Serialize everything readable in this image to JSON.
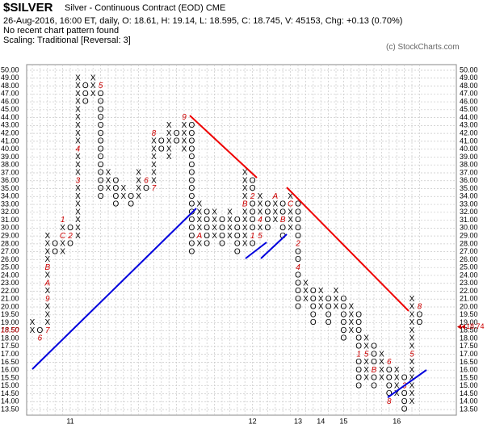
{
  "chart_data": {
    "type": "point-and-figure",
    "title": "$SILVER",
    "subtitle": "Silver - Continuous Contract (EOD)  CME",
    "info": "26-Aug-2016, 16:00 ET, daily, O: 18.61, H: 19.14, L: 18.595, C: 18.745, V: 45153, Chg: +0.13 (0.70%)",
    "pattern": "No recent chart pattern found",
    "scaling": "Scaling: Traditional [Reversal: 3]",
    "credit": "(c) StockCharts.com",
    "grid": true,
    "x_color": "#000000",
    "o_color": "#000000",
    "mark_color": "#cc0000",
    "left_marker": {
      "value": 18.5,
      "label": "18.50"
    },
    "last_price": {
      "value": 18.74,
      "label": "18.74"
    },
    "ylim": [
      13.5,
      50
    ],
    "yticks": [
      {
        "value": 13.5,
        "label": "13.50"
      },
      {
        "value": 14,
        "label": "14.00"
      },
      {
        "value": 14.5,
        "label": "14.50"
      },
      {
        "value": 15,
        "label": "15.00"
      },
      {
        "value": 15.5,
        "label": "15.50"
      },
      {
        "value": 16,
        "label": "16.00"
      },
      {
        "value": 16.5,
        "label": "16.50"
      },
      {
        "value": 17,
        "label": "17.00"
      },
      {
        "value": 17.5,
        "label": "17.50"
      },
      {
        "value": 18,
        "label": "18.00"
      },
      {
        "value": 18.5,
        "label": "18.50"
      },
      {
        "value": 19,
        "label": "19.00"
      },
      {
        "value": 19.5,
        "label": "19.50"
      },
      {
        "value": 20,
        "label": "20.00"
      },
      {
        "value": 21,
        "label": "21.00"
      },
      {
        "value": 22,
        "label": "22.00"
      },
      {
        "value": 23,
        "label": "23.00"
      },
      {
        "value": 24,
        "label": "24.00"
      },
      {
        "value": 25,
        "label": "25.00"
      },
      {
        "value": 26,
        "label": "26.00"
      },
      {
        "value": 27,
        "label": "27.00"
      },
      {
        "value": 28,
        "label": "28.00"
      },
      {
        "value": 29,
        "label": "29.00"
      },
      {
        "value": 30,
        "label": "30.00"
      },
      {
        "value": 31,
        "label": "31.00"
      },
      {
        "value": 32,
        "label": "32.00"
      },
      {
        "value": 33,
        "label": "33.00"
      },
      {
        "value": 34,
        "label": "34.00"
      },
      {
        "value": 35,
        "label": "35.00"
      },
      {
        "value": 36,
        "label": "36.00"
      },
      {
        "value": 37,
        "label": "37.00"
      },
      {
        "value": 38,
        "label": "38.00"
      },
      {
        "value": 39,
        "label": "39.00"
      },
      {
        "value": 40,
        "label": "40.00"
      },
      {
        "value": 41,
        "label": "41.00"
      },
      {
        "value": 42,
        "label": "42.00"
      },
      {
        "value": 43,
        "label": "43.00"
      },
      {
        "value": 44,
        "label": "44.00"
      },
      {
        "value": 45,
        "label": "45.00"
      },
      {
        "value": 46,
        "label": "46.00"
      },
      {
        "value": 47,
        "label": "47.00"
      },
      {
        "value": 48,
        "label": "48.00"
      },
      {
        "value": 49,
        "label": "49.00"
      },
      {
        "value": 50,
        "label": "50.00"
      }
    ],
    "categories": [
      null,
      null,
      null,
      null,
      null,
      "11",
      null,
      null,
      null,
      null,
      null,
      null,
      null,
      null,
      null,
      null,
      null,
      null,
      null,
      null,
      null,
      null,
      null,
      null,
      null,
      null,
      null,
      null,
      null,
      "12",
      null,
      null,
      null,
      null,
      null,
      "13",
      null,
      null,
      "14",
      null,
      null,
      "15",
      null,
      null,
      null,
      null,
      null,
      null,
      "16",
      null,
      null,
      null
    ],
    "columns": [
      {
        "kind": "X",
        "low": 18.5,
        "high": 19
      },
      {
        "kind": "O",
        "low": 18,
        "high": 18.5,
        "marks": [
          {
            "value": 18,
            "label": "6"
          }
        ]
      },
      {
        "kind": "X",
        "low": 18.5,
        "high": 29,
        "marks": [
          {
            "value": 18.5,
            "label": "7"
          },
          {
            "value": 21,
            "label": "9"
          },
          {
            "value": 23,
            "label": "A"
          },
          {
            "value": 25,
            "label": "B"
          }
        ]
      },
      {
        "kind": "O",
        "low": 27,
        "high": 28
      },
      {
        "kind": "X",
        "low": 27,
        "high": 31,
        "marks": [
          {
            "value": 29,
            "label": "C"
          },
          {
            "value": 31,
            "label": "1"
          }
        ]
      },
      {
        "kind": "O",
        "low": 28,
        "high": 30,
        "marks": [
          {
            "value": 29,
            "label": "2"
          }
        ]
      },
      {
        "kind": "X",
        "low": 29,
        "high": 49,
        "marks": [
          {
            "value": 36,
            "label": "3"
          },
          {
            "value": 40,
            "label": "4"
          }
        ]
      },
      {
        "kind": "O",
        "low": 46,
        "high": 48
      },
      {
        "kind": "X",
        "low": 47,
        "high": 49
      },
      {
        "kind": "O",
        "low": 34,
        "high": 48,
        "marks": [
          {
            "value": 48,
            "label": "5"
          }
        ]
      },
      {
        "kind": "X",
        "low": 35,
        "high": 37
      },
      {
        "kind": "O",
        "low": 33,
        "high": 36
      },
      {
        "kind": "X",
        "low": 34,
        "high": 35
      },
      {
        "kind": "O",
        "low": 33,
        "high": 34
      },
      {
        "kind": "X",
        "low": 34,
        "high": 37
      },
      {
        "kind": "O",
        "low": 35,
        "high": 36,
        "marks": [
          {
            "value": 36,
            "label": "6"
          }
        ]
      },
      {
        "kind": "X",
        "low": 35,
        "high": 42,
        "marks": [
          {
            "value": 35,
            "label": "7"
          },
          {
            "value": 42,
            "label": "8"
          }
        ]
      },
      {
        "kind": "O",
        "low": 40,
        "high": 41
      },
      {
        "kind": "X",
        "low": 39,
        "high": 43
      },
      {
        "kind": "O",
        "low": 41,
        "high": 42
      },
      {
        "kind": "X",
        "low": 40,
        "high": 44,
        "marks": [
          {
            "value": 44,
            "label": "9"
          }
        ]
      },
      {
        "kind": "O",
        "low": 27,
        "high": 43
      },
      {
        "kind": "X",
        "low": 28,
        "high": 33,
        "marks": [
          {
            "value": 29,
            "label": "A"
          }
        ]
      },
      {
        "kind": "O",
        "low": 28,
        "high": 32
      },
      {
        "kind": "X",
        "low": 29,
        "high": 32
      },
      {
        "kind": "O",
        "low": 28,
        "high": 31
      },
      {
        "kind": "X",
        "low": 29,
        "high": 32
      },
      {
        "kind": "O",
        "low": 27,
        "high": 31
      },
      {
        "kind": "X",
        "low": 28,
        "high": 37,
        "marks": [
          {
            "value": 33,
            "label": "B"
          }
        ]
      },
      {
        "kind": "O",
        "low": 28,
        "high": 36,
        "marks": [
          {
            "value": 29,
            "label": "1"
          },
          {
            "value": 34,
            "label": "2"
          }
        ]
      },
      {
        "kind": "X",
        "low": 29,
        "high": 34,
        "marks": [
          {
            "value": 31,
            "label": "4"
          },
          {
            "value": 29,
            "label": "5"
          }
        ]
      },
      {
        "kind": "O",
        "low": 30,
        "high": 33
      },
      {
        "kind": "X",
        "low": 31,
        "high": 34,
        "marks": [
          {
            "value": 34,
            "label": "A"
          }
        ]
      },
      {
        "kind": "O",
        "low": 29,
        "high": 33,
        "marks": [
          {
            "value": 31,
            "label": "B"
          }
        ]
      },
      {
        "kind": "X",
        "low": 30,
        "high": 34,
        "marks": [
          {
            "value": 33,
            "label": "C"
          }
        ]
      },
      {
        "kind": "O",
        "low": 20,
        "high": 33,
        "marks": [
          {
            "value": 28,
            "label": "2"
          },
          {
            "value": 25,
            "label": "4"
          }
        ]
      },
      {
        "kind": "X",
        "low": 21,
        "high": 23
      },
      {
        "kind": "O",
        "low": 19,
        "high": 22
      },
      {
        "kind": "X",
        "low": 20,
        "high": 22
      },
      {
        "kind": "O",
        "low": 19,
        "high": 21
      },
      {
        "kind": "X",
        "low": 20,
        "high": 22
      },
      {
        "kind": "O",
        "low": 18,
        "high": 21
      },
      {
        "kind": "X",
        "low": 18.5,
        "high": 20
      },
      {
        "kind": "O",
        "low": 15,
        "high": 19.5,
        "marks": [
          {
            "value": 17,
            "label": "1"
          }
        ]
      },
      {
        "kind": "X",
        "low": 15.5,
        "high": 18,
        "marks": [
          {
            "value": 17,
            "label": "5"
          }
        ]
      },
      {
        "kind": "O",
        "low": 15,
        "high": 17.5,
        "marks": [
          {
            "value": 16,
            "label": "B"
          }
        ]
      },
      {
        "kind": "X",
        "low": 15.5,
        "high": 17
      },
      {
        "kind": "O",
        "low": 14,
        "high": 16.5,
        "marks": [
          {
            "value": 16.5,
            "label": "6"
          },
          {
            "value": 14,
            "label": "8"
          }
        ]
      },
      {
        "kind": "X",
        "low": 14.5,
        "high": 16
      },
      {
        "kind": "O",
        "low": 13.5,
        "high": 15.5,
        "marks": [
          {
            "value": 15,
            "label": "3"
          }
        ]
      },
      {
        "kind": "X",
        "low": 14,
        "high": 21,
        "marks": [
          {
            "value": 17,
            "label": "5"
          }
        ]
      },
      {
        "kind": "O",
        "low": 19,
        "high": 20,
        "marks": [
          {
            "value": 20,
            "label": "8"
          }
        ]
      }
    ]
  }
}
